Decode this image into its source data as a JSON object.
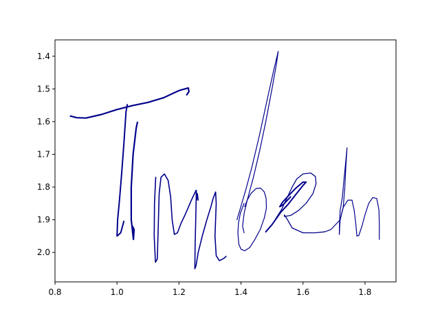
{
  "chart_data": {
    "type": "line",
    "title": "",
    "xlabel": "",
    "ylabel": "",
    "xlim": [
      0.8,
      1.9
    ],
    "ylim": [
      2.09,
      1.35
    ],
    "y_inverted": true,
    "grid": false,
    "legend": "none",
    "line_color": "#00008b",
    "x_ticks": [
      0.8,
      1.0,
      1.2,
      1.4,
      1.6,
      1.8
    ],
    "x_tick_labels": [
      "0.8",
      "1.0",
      "1.2",
      "1.4",
      "1.6",
      "1.8"
    ],
    "y_ticks": [
      1.4,
      1.5,
      1.6,
      1.7,
      1.8,
      1.9,
      2.0
    ],
    "y_tick_labels": [
      "1.4",
      "1.5",
      "1.6",
      "1.7",
      "1.8",
      "1.9",
      "2.0"
    ],
    "series": [
      {
        "width": 2.2,
        "points": [
          [
            0.85,
            1.583
          ],
          [
            0.87,
            1.588
          ],
          [
            0.9,
            1.589
          ],
          [
            0.95,
            1.578
          ],
          [
            1.0,
            1.563
          ],
          [
            1.05,
            1.551
          ],
          [
            1.1,
            1.541
          ],
          [
            1.15,
            1.527
          ],
          [
            1.2,
            1.505
          ],
          [
            1.23,
            1.497
          ],
          [
            1.232,
            1.508
          ],
          [
            1.225,
            1.518
          ]
        ]
      },
      {
        "width": 2.0,
        "points": [
          [
            1.033,
            1.548
          ],
          [
            1.029,
            1.57
          ],
          [
            1.022,
            1.67
          ],
          [
            1.015,
            1.76
          ],
          [
            1.008,
            1.84
          ],
          [
            1.002,
            1.9
          ],
          [
            1.0,
            1.95
          ],
          [
            1.012,
            1.94
          ],
          [
            1.022,
            1.905
          ]
        ]
      },
      {
        "width": 2.2,
        "points": [
          [
            1.066,
            1.602
          ],
          [
            1.062,
            1.62
          ],
          [
            1.052,
            1.7
          ],
          [
            1.046,
            1.8
          ],
          [
            1.046,
            1.9
          ],
          [
            1.053,
            1.96
          ],
          [
            1.055,
            1.93
          ],
          [
            1.05,
            1.92
          ]
        ]
      },
      {
        "width": 1.6,
        "points": [
          [
            1.125,
            1.77
          ],
          [
            1.121,
            1.85
          ],
          [
            1.12,
            1.95
          ],
          [
            1.124,
            2.03
          ],
          [
            1.13,
            2.02
          ],
          [
            1.133,
            1.92
          ],
          [
            1.136,
            1.82
          ],
          [
            1.142,
            1.77
          ],
          [
            1.153,
            1.76
          ],
          [
            1.165,
            1.78
          ],
          [
            1.173,
            1.83
          ],
          [
            1.178,
            1.9
          ],
          [
            1.185,
            1.945
          ],
          [
            1.195,
            1.94
          ],
          [
            1.207,
            1.91
          ],
          [
            1.222,
            1.88
          ],
          [
            1.24,
            1.84
          ],
          [
            1.25,
            1.82
          ],
          [
            1.255,
            1.81
          ],
          [
            1.257,
            1.84
          ],
          [
            1.259,
            1.82
          ],
          [
            1.262,
            1.84
          ]
        ]
      },
      {
        "width": 1.6,
        "points": [
          [
            1.256,
            1.81
          ],
          [
            1.254,
            1.9
          ],
          [
            1.252,
            1.98
          ],
          [
            1.251,
            2.05
          ],
          [
            1.255,
            2.04
          ],
          [
            1.262,
            2.0
          ],
          [
            1.275,
            1.95
          ],
          [
            1.29,
            1.9
          ],
          [
            1.303,
            1.86
          ],
          [
            1.31,
            1.835
          ],
          [
            1.318,
            1.815
          ],
          [
            1.32,
            1.85
          ],
          [
            1.318,
            1.9
          ],
          [
            1.316,
            1.95
          ],
          [
            1.32,
            2.01
          ],
          [
            1.33,
            2.025
          ],
          [
            1.345,
            2.018
          ],
          [
            1.352,
            2.012
          ]
        ]
      },
      {
        "width": 1.2,
        "points": [
          [
            1.387,
            1.9
          ],
          [
            1.398,
            1.865
          ],
          [
            1.415,
            1.81
          ],
          [
            1.435,
            1.74
          ],
          [
            1.46,
            1.64
          ],
          [
            1.485,
            1.53
          ],
          [
            1.505,
            1.445
          ],
          [
            1.52,
            1.385
          ],
          [
            1.515,
            1.42
          ],
          [
            1.5,
            1.5
          ],
          [
            1.48,
            1.6
          ],
          [
            1.46,
            1.69
          ],
          [
            1.44,
            1.77
          ],
          [
            1.42,
            1.84
          ],
          [
            1.41,
            1.88
          ],
          [
            1.405,
            1.92
          ],
          [
            1.41,
            1.94
          ]
        ]
      },
      {
        "width": 1.2,
        "points": [
          [
            1.41,
            1.85
          ],
          [
            1.398,
            1.88
          ],
          [
            1.392,
            1.91
          ],
          [
            1.39,
            1.94
          ],
          [
            1.393,
            1.975
          ],
          [
            1.4,
            1.99
          ],
          [
            1.412,
            1.995
          ],
          [
            1.428,
            1.985
          ],
          [
            1.445,
            1.96
          ],
          [
            1.462,
            1.93
          ],
          [
            1.475,
            1.895
          ],
          [
            1.482,
            1.865
          ],
          [
            1.481,
            1.835
          ],
          [
            1.475,
            1.815
          ],
          [
            1.463,
            1.803
          ],
          [
            1.448,
            1.805
          ],
          [
            1.432,
            1.82
          ],
          [
            1.42,
            1.84
          ],
          [
            1.412,
            1.86
          ]
        ]
      },
      {
        "width": 2.0,
        "points": [
          [
            1.48,
            1.937
          ],
          [
            1.5,
            1.915
          ],
          [
            1.515,
            1.895
          ],
          [
            1.53,
            1.875
          ],
          [
            1.55,
            1.855
          ],
          [
            1.575,
            1.825
          ],
          [
            1.6,
            1.795
          ],
          [
            1.61,
            1.785
          ],
          [
            1.6,
            1.785
          ],
          [
            1.575,
            1.805
          ],
          [
            1.555,
            1.825
          ],
          [
            1.535,
            1.845
          ],
          [
            1.525,
            1.86
          ],
          [
            1.535,
            1.855
          ],
          [
            1.55,
            1.84
          ],
          [
            1.56,
            1.83
          ]
        ]
      },
      {
        "width": 1.3,
        "points": [
          [
            1.51,
            1.9
          ],
          [
            1.53,
            1.87
          ],
          [
            1.55,
            1.83
          ],
          [
            1.565,
            1.8
          ],
          [
            1.58,
            1.775
          ],
          [
            1.6,
            1.76
          ],
          [
            1.625,
            1.757
          ],
          [
            1.64,
            1.768
          ],
          [
            1.642,
            1.79
          ],
          [
            1.632,
            1.82
          ],
          [
            1.61,
            1.85
          ],
          [
            1.585,
            1.872
          ],
          [
            1.56,
            1.887
          ],
          [
            1.54,
            1.89
          ],
          [
            1.54,
            1.885
          ],
          [
            1.55,
            1.9
          ],
          [
            1.565,
            1.925
          ],
          [
            1.6,
            1.94
          ],
          [
            1.64,
            1.94
          ],
          [
            1.67,
            1.937
          ]
        ]
      },
      {
        "width": 1.2,
        "points": [
          [
            1.67,
            1.937
          ],
          [
            1.69,
            1.93
          ],
          [
            1.72,
            1.9
          ],
          [
            1.73,
            1.86
          ],
          [
            1.735,
            1.8
          ],
          [
            1.738,
            1.74
          ],
          [
            1.742,
            1.68
          ],
          [
            1.738,
            1.72
          ],
          [
            1.732,
            1.78
          ],
          [
            1.727,
            1.83
          ],
          [
            1.722,
            1.86
          ],
          [
            1.72,
            1.87
          ],
          [
            1.718,
            1.91
          ],
          [
            1.717,
            1.945
          ]
        ]
      },
      {
        "width": 1.2,
        "points": [
          [
            1.717,
            1.945
          ],
          [
            1.72,
            1.9
          ],
          [
            1.73,
            1.862
          ],
          [
            1.745,
            1.84
          ],
          [
            1.758,
            1.84
          ],
          [
            1.765,
            1.87
          ],
          [
            1.77,
            1.91
          ],
          [
            1.774,
            1.95
          ],
          [
            1.78,
            1.948
          ],
          [
            1.79,
            1.92
          ],
          [
            1.8,
            1.885
          ],
          [
            1.812,
            1.85
          ],
          [
            1.825,
            1.832
          ],
          [
            1.838,
            1.835
          ],
          [
            1.845,
            1.87
          ],
          [
            1.846,
            1.91
          ],
          [
            1.846,
            1.96
          ]
        ]
      }
    ]
  }
}
